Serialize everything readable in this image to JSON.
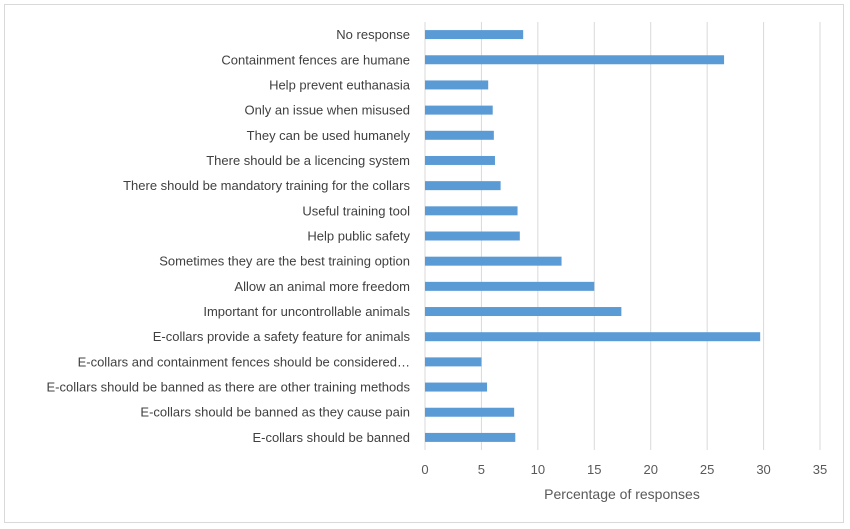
{
  "chart_data": {
    "type": "bar",
    "orientation": "horizontal",
    "categories": [
      "No response",
      "Containment fences are humane",
      "Help prevent euthanasia ",
      "Only an issue when misused",
      "They can be used humanely ",
      "There should be a licencing system",
      "There should be mandatory training for the collars",
      "Useful training tool",
      "Help public safety",
      "Sometimes they are the best training option",
      "Allow an animal more freedom",
      "Important for uncontrollable animals",
      "E-collars provide a safety feature for animals",
      "E-collars and containment fences should be considered…",
      "E-collars should be banned as there are other training methods",
      "E-collars should be banned as they cause pain",
      "E-collars should be banned"
    ],
    "values": [
      8.7,
      26.5,
      5.6,
      6.0,
      6.1,
      6.2,
      6.7,
      8.2,
      8.4,
      12.1,
      15.0,
      17.4,
      29.7,
      5.0,
      5.5,
      7.9,
      8.0
    ],
    "xlabel": "Percentage of responses",
    "ylabel": "",
    "xlim": [
      0,
      35
    ],
    "xticks": [
      "0",
      "5",
      "10",
      "15",
      "20",
      "25",
      "30",
      "35"
    ],
    "grid": "vertical",
    "bar_color": "#5b9bd5",
    "grid_color": "#d9d9d9"
  }
}
